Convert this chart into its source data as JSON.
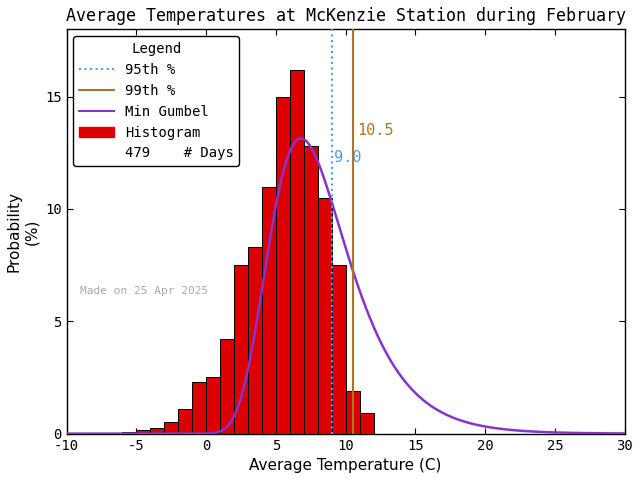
{
  "title": "Average Temperatures at McKenzie Station during February",
  "xlabel": "Average Temperature (C)",
  "ylabel": "Probability\n(%)",
  "xlim": [
    -10,
    30
  ],
  "ylim": [
    0,
    18
  ],
  "bin_edges": [
    -7,
    -6,
    -5,
    -4,
    -3,
    -2,
    -1,
    0,
    1,
    2,
    3,
    4,
    5,
    6,
    7,
    8,
    9,
    10,
    11,
    12
  ],
  "bin_heights": [
    0.0,
    0.08,
    0.15,
    0.25,
    0.5,
    1.1,
    2.3,
    2.5,
    4.2,
    7.5,
    8.3,
    11.0,
    15.0,
    16.2,
    12.8,
    10.5,
    7.5,
    1.9,
    0.9
  ],
  "gumbel_mu": 6.8,
  "gumbel_beta": 2.8,
  "gumbel_scale": 100.0,
  "percentile_95": 9.0,
  "percentile_99": 10.5,
  "n_days": 479,
  "made_on": "Made on 25 Apr 2025",
  "hist_color": "#dd0000",
  "hist_edge_color": "#000000",
  "gumbel_color": "#8833cc",
  "p95_color": "#5599ee",
  "p99_color": "#aa7722",
  "background_color": "#ffffff",
  "title_fontsize": 12,
  "axis_fontsize": 11,
  "tick_fontsize": 10,
  "legend_fontsize": 10,
  "annotation_fontsize": 11
}
